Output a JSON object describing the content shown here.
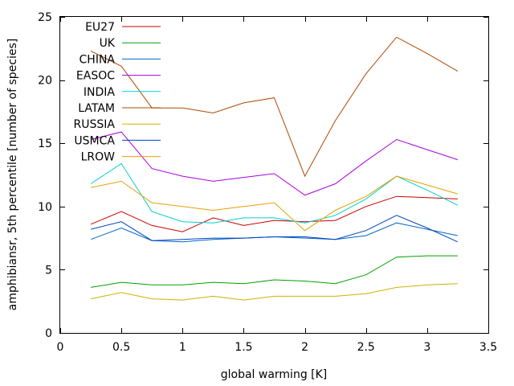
{
  "chart_data": {
    "type": "line",
    "title": "",
    "xlabel": "global warming [K]",
    "ylabel": "amphibiansr, 5th percentile [number of species]",
    "xlim": [
      0,
      3.5
    ],
    "ylim": [
      0,
      25
    ],
    "xticks": [
      "0",
      "0.5",
      "1",
      "1.5",
      "2",
      "2.5",
      "3",
      "3.5"
    ],
    "yticks": [
      "0",
      "5",
      "10",
      "15",
      "20",
      "25"
    ],
    "grid": false,
    "legend_position": "top-left",
    "x": [
      0.25,
      0.5,
      0.75,
      1.0,
      1.25,
      1.5,
      1.75,
      2.0,
      2.25,
      2.5,
      2.75,
      3.0,
      3.25
    ],
    "series": [
      {
        "name": "EU27",
        "color": "#cc0000",
        "values": [
          8.6,
          9.6,
          8.5,
          8.0,
          9.1,
          8.5,
          8.9,
          8.8,
          8.9,
          10.0,
          10.8,
          10.7,
          10.6
        ]
      },
      {
        "name": "UK",
        "color": "#00a000",
        "values": [
          3.6,
          4.0,
          3.8,
          3.8,
          4.0,
          3.9,
          4.2,
          4.1,
          3.9,
          4.6,
          6.0,
          6.1,
          6.1
        ]
      },
      {
        "name": "CHINA",
        "color": "#0066cc",
        "values": [
          7.4,
          8.3,
          7.3,
          7.2,
          7.4,
          7.5,
          7.6,
          7.5,
          7.4,
          7.7,
          8.7,
          8.2,
          7.7
        ]
      },
      {
        "name": "EASOC",
        "color": "#aa00dd",
        "values": [
          15.3,
          15.9,
          13.0,
          12.4,
          12.0,
          12.3,
          12.6,
          10.9,
          11.8,
          13.6,
          15.3,
          14.5,
          13.7
        ]
      },
      {
        "name": "INDIA",
        "color": "#00d0d0",
        "values": [
          11.8,
          13.4,
          9.6,
          8.8,
          8.7,
          9.1,
          9.1,
          8.7,
          9.3,
          10.6,
          12.4,
          11.3,
          10.1
        ]
      },
      {
        "name": "LATAM",
        "color": "#b04800",
        "values": [
          22.3,
          21.1,
          17.8,
          17.8,
          17.4,
          18.2,
          18.6,
          12.4,
          16.8,
          20.5,
          23.4,
          22.1,
          20.7
        ]
      },
      {
        "name": "RUSSIA",
        "color": "#d0b000",
        "values": [
          2.7,
          3.2,
          2.7,
          2.6,
          2.9,
          2.6,
          2.9,
          2.9,
          2.9,
          3.1,
          3.6,
          3.8,
          3.9
        ]
      },
      {
        "name": "USMCA",
        "color": "#0044bb",
        "values": [
          8.2,
          8.8,
          7.3,
          7.4,
          7.5,
          7.5,
          7.6,
          7.6,
          7.4,
          8.1,
          9.3,
          8.3,
          7.2
        ]
      },
      {
        "name": "LROW",
        "color": "#e6a000",
        "values": [
          11.5,
          12.0,
          10.3,
          10.0,
          9.7,
          10.0,
          10.3,
          8.1,
          9.7,
          10.8,
          12.4,
          11.7,
          11.0
        ]
      }
    ]
  }
}
